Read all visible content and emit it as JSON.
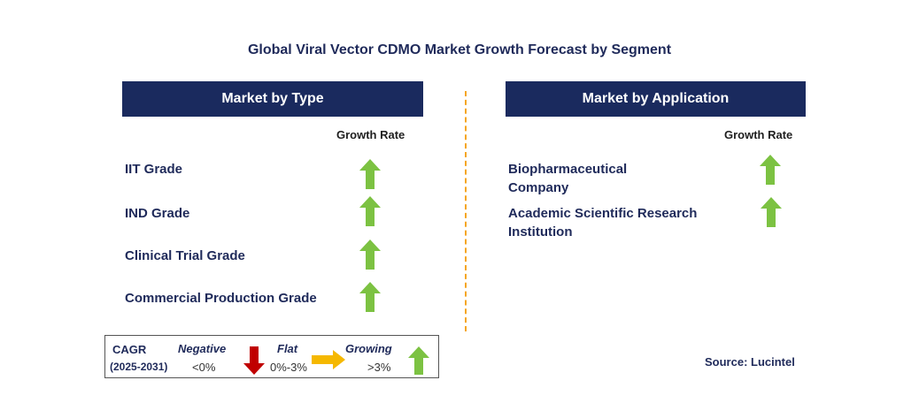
{
  "title": "Global Viral Vector CDMO Market Growth Forecast by Segment",
  "left_panel": {
    "header": "Market by Type",
    "growth_rate_label": "Growth Rate",
    "items": [
      {
        "label": "IIT Grade",
        "trend": "growing"
      },
      {
        "label": "IND Grade",
        "trend": "growing"
      },
      {
        "label": "Clinical Trial Grade",
        "trend": "growing"
      },
      {
        "label": "Commercial Production Grade",
        "trend": "growing"
      }
    ]
  },
  "right_panel": {
    "header": "Market by Application",
    "growth_rate_label": "Growth Rate",
    "items": [
      {
        "label_line1": "Biopharmaceutical",
        "label_line2": "Company",
        "trend": "growing"
      },
      {
        "label_line1": "Academic Scientific Research",
        "label_line2": "Institution",
        "trend": "growing"
      }
    ]
  },
  "legend": {
    "cagr_label": "CAGR",
    "period": "(2025-2031)",
    "negative_label": "Negative",
    "negative_range": "<0%",
    "flat_label": "Flat",
    "flat_range": "0%-3%",
    "growing_label": "Growing",
    "growing_range": ">3%"
  },
  "source": "Source: Lucintel",
  "colors": {
    "header_bg": "#1a2a5e",
    "up_arrow": "#7cc242",
    "down_arrow": "#c00000",
    "flat_arrow": "#f5b800",
    "divider": "#f5a623"
  },
  "icons": {
    "growing": "up-arrow-icon",
    "negative": "down-arrow-icon",
    "flat": "right-arrow-icon"
  }
}
